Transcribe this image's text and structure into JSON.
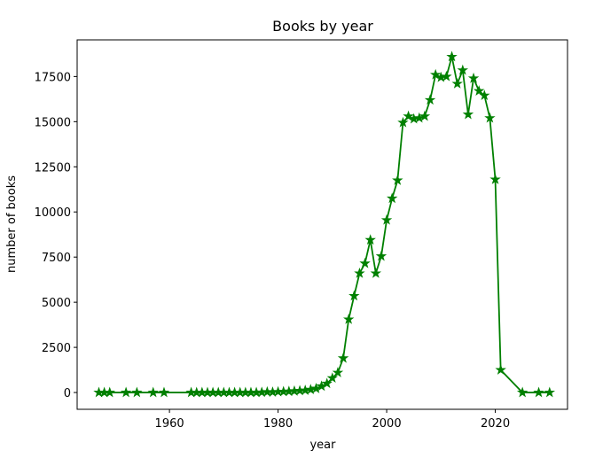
{
  "chart_data": {
    "type": "line",
    "title": "Books by year",
    "x_label": "year",
    "y_label": "number of books",
    "x": [
      1947,
      1948,
      1949,
      1952,
      1954,
      1957,
      1959,
      1964,
      1965,
      1966,
      1967,
      1968,
      1969,
      1970,
      1971,
      1972,
      1973,
      1974,
      1975,
      1976,
      1977,
      1978,
      1979,
      1980,
      1981,
      1982,
      1983,
      1984,
      1985,
      1986,
      1987,
      1988,
      1989,
      1990,
      1991,
      1992,
      1993,
      1994,
      1995,
      1996,
      1997,
      1998,
      1999,
      2000,
      2001,
      2002,
      2003,
      2004,
      2005,
      2006,
      2007,
      2008,
      2009,
      2010,
      2011,
      2012,
      2013,
      2014,
      2015,
      2016,
      2017,
      2018,
      2019,
      2020,
      2021,
      2025,
      2028,
      2030
    ],
    "series": [
      {
        "name": "books",
        "color": "#008000",
        "marker": "star",
        "values": [
          0,
          0,
          0,
          0,
          0,
          0,
          0,
          0,
          0,
          0,
          0,
          0,
          0,
          0,
          0,
          0,
          0,
          0,
          0,
          0,
          10,
          30,
          20,
          40,
          50,
          60,
          80,
          100,
          120,
          160,
          220,
          350,
          500,
          800,
          1100,
          1900,
          4050,
          5350,
          6600,
          7150,
          8450,
          6600,
          7550,
          9550,
          10750,
          11750,
          14950,
          15300,
          15150,
          15200,
          15300,
          16200,
          17600,
          17450,
          17500,
          18600,
          17100,
          17850,
          15400,
          17400,
          16700,
          16450,
          15200,
          11800,
          1250,
          0,
          0,
          0
        ]
      }
    ],
    "xlim": [
      1943,
      2033.3
    ],
    "ylim": [
      -930,
      19530
    ],
    "xticks": [
      1960,
      1980,
      2000,
      2020
    ],
    "yticks": [
      0,
      2500,
      5000,
      7500,
      10000,
      12500,
      15000,
      17500
    ]
  }
}
